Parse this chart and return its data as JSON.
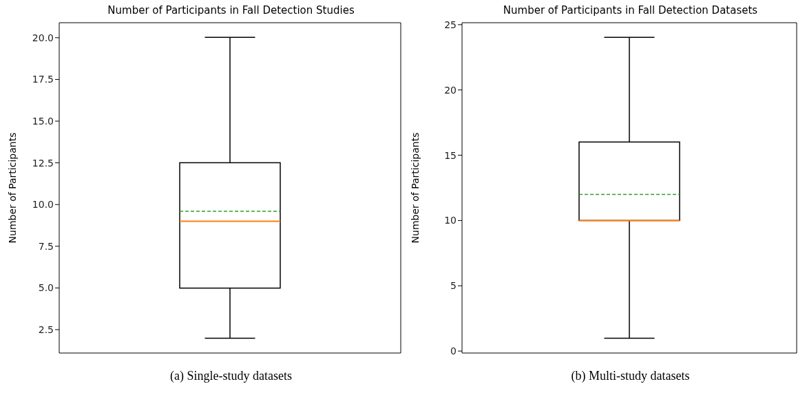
{
  "chart_data": [
    {
      "type": "box",
      "title": "Number of Participants in Fall Detection Studies",
      "ylabel": "Number of Participants",
      "annotations": [
        "(a) Single-study datasets"
      ],
      "categories": [
        null
      ],
      "color": "#000000",
      "boxes": [
        {
          "low": 2,
          "q1": 5,
          "median": 9,
          "q3": 12.5,
          "high": 20,
          "mean": 9.6
        }
      ],
      "ylim": [
        1.1,
        20.9
      ],
      "yticks": [
        {
          "value": 2.5,
          "label": "2.5"
        },
        {
          "value": 5,
          "label": "5.0"
        },
        {
          "value": 7.5,
          "label": "7.5"
        },
        {
          "value": 10,
          "label": "10.0"
        },
        {
          "value": 12.5,
          "label": "12.5"
        },
        {
          "value": 15,
          "label": "15.0"
        },
        {
          "value": 17.5,
          "label": "17.5"
        },
        {
          "value": 20,
          "label": "20.0"
        }
      ],
      "tick_labels": "y",
      "grid": false
    },
    {
      "type": "box",
      "title": "Number of Participants in Fall Detection Datasets",
      "ylabel": "Number of Participants",
      "annotations": [
        "(b) Multi-study datasets"
      ],
      "categories": [
        null
      ],
      "color": "#000000",
      "boxes": [
        {
          "low": 1,
          "q1": 10,
          "median": 10,
          "q3": 16,
          "high": 24,
          "mean": 12
        }
      ],
      "ylim": [
        -0.15,
        25.15
      ],
      "yticks": [
        0,
        5,
        10,
        15,
        20,
        25
      ],
      "tick_labels": "y",
      "grid": false
    }
  ]
}
